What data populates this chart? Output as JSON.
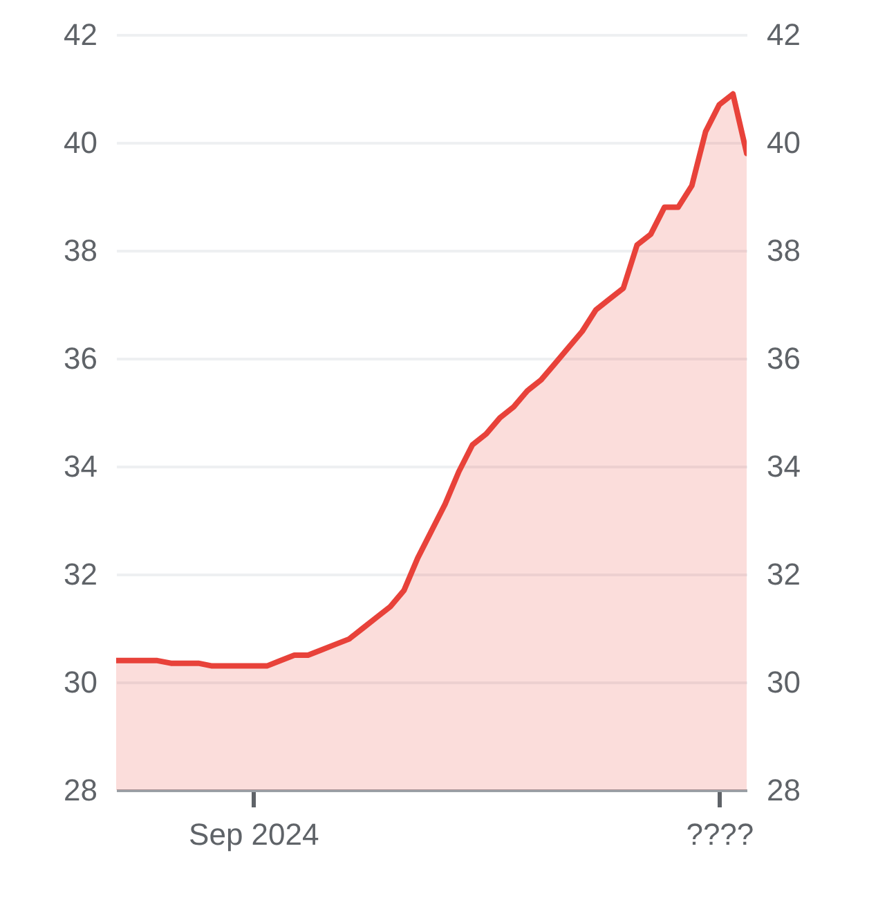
{
  "chart_data": {
    "type": "area",
    "categories": [
      null,
      null,
      null,
      null,
      null,
      null,
      null,
      null,
      null,
      null,
      "Sep 2024",
      null,
      null,
      null,
      null,
      null,
      null,
      null,
      null,
      null,
      null,
      null,
      null,
      null,
      null,
      null,
      null,
      null,
      null,
      null,
      null,
      null,
      null,
      null,
      null,
      null,
      null,
      null,
      null,
      null,
      null,
      null,
      null,
      null,
      "????",
      null,
      null
    ],
    "series": [
      {
        "color": "#e8423a",
        "values": [
          30.4,
          30.4,
          30.4,
          30.4,
          30.35,
          30.35,
          30.35,
          30.3,
          30.3,
          30.3,
          30.3,
          30.3,
          30.4,
          30.5,
          30.5,
          30.6,
          30.7,
          30.8,
          31.0,
          31.2,
          31.4,
          31.7,
          32.3,
          32.8,
          33.3,
          33.9,
          34.4,
          34.6,
          34.9,
          35.1,
          35.4,
          35.6,
          35.9,
          36.2,
          36.5,
          36.9,
          37.1,
          37.3,
          38.1,
          38.3,
          38.8,
          38.8,
          39.2,
          40.2,
          40.7,
          40.9,
          39.8
        ]
      }
    ],
    "ylim": [
      28,
      42
    ],
    "yticks": [
      28,
      30,
      32,
      34,
      36,
      38,
      40,
      42
    ],
    "y2lim": [
      28,
      42
    ],
    "y2ticks": [
      28,
      30,
      32,
      34,
      36,
      38,
      40,
      42
    ],
    "grid": "y"
  }
}
